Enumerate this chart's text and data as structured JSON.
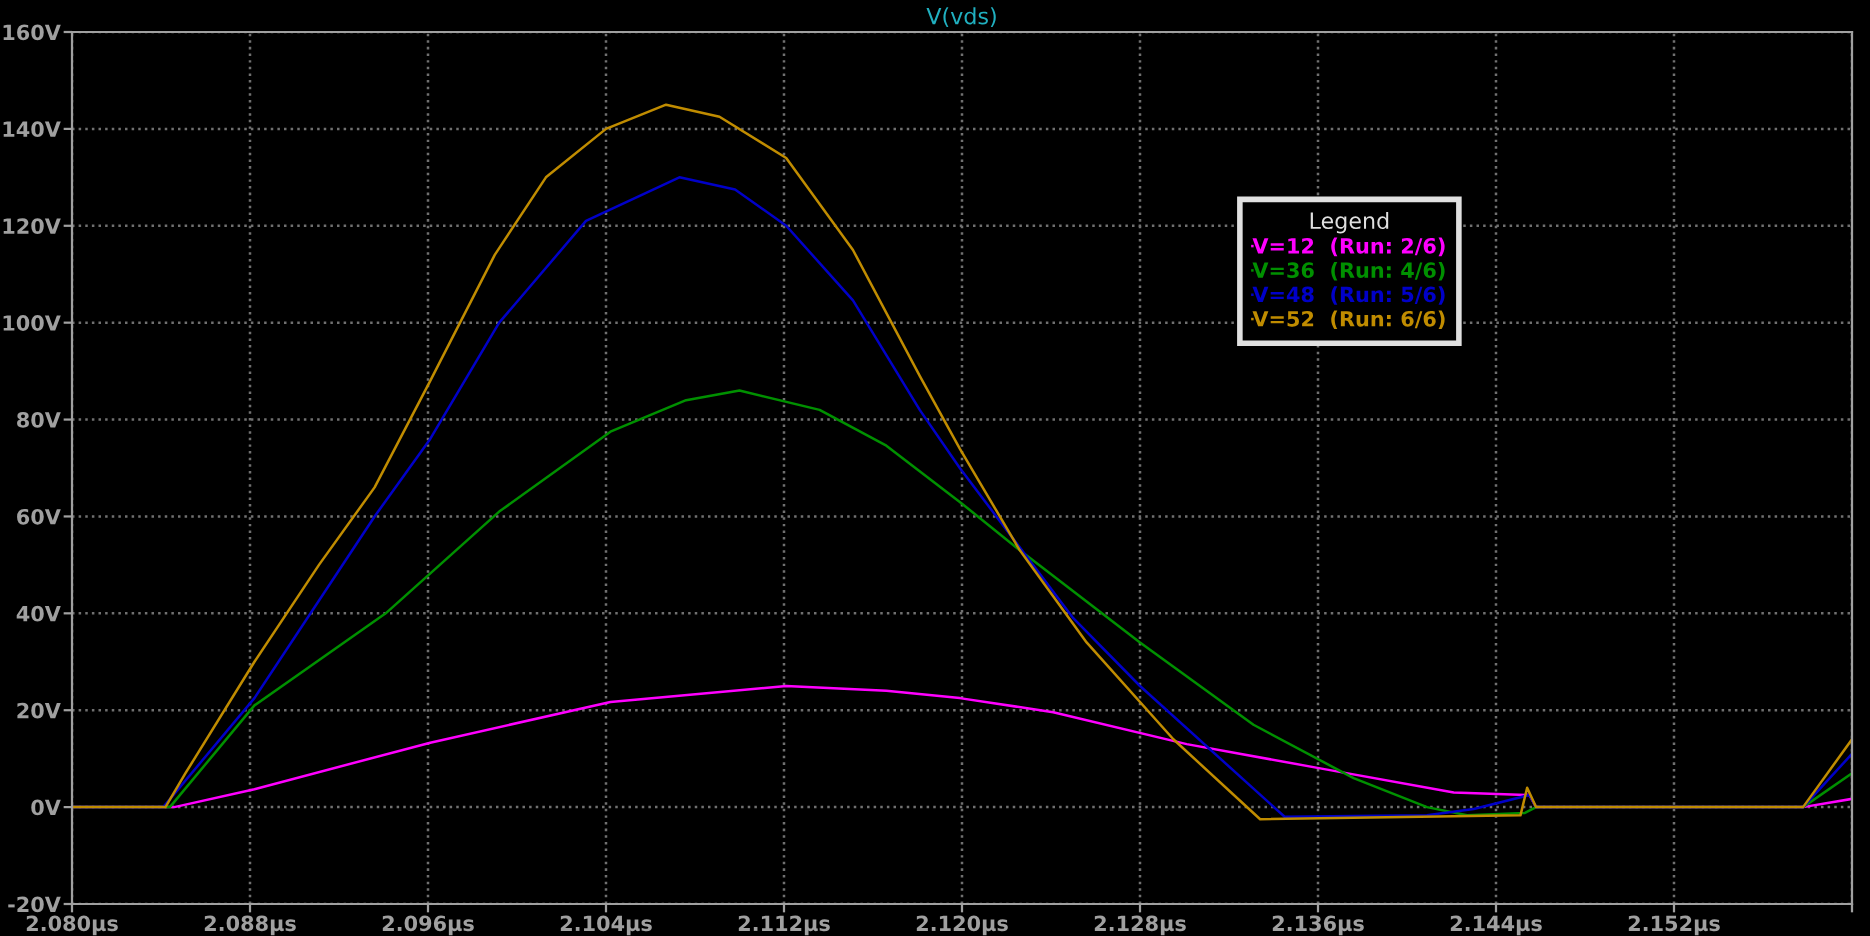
{
  "chart_data": {
    "type": "line",
    "title": "V(vds)",
    "legend_title": "Legend",
    "legend": "top right",
    "grid": true,
    "xlim": [
      2.08,
      2.16
    ],
    "ylim": [
      -20,
      160
    ],
    "xticks": [
      {
        "value": 2.08,
        "label": "2.080µs"
      },
      {
        "value": 2.088,
        "label": "2.088µs"
      },
      {
        "value": 2.096,
        "label": "2.096µs"
      },
      {
        "value": 2.104,
        "label": "2.104µs"
      },
      {
        "value": 2.112,
        "label": "2.112µs"
      },
      {
        "value": 2.12,
        "label": "2.120µs"
      },
      {
        "value": 2.128,
        "label": "2.128µs"
      },
      {
        "value": 2.136,
        "label": "2.136µs"
      },
      {
        "value": 2.144,
        "label": "2.144µs"
      },
      {
        "value": 2.152,
        "label": "2.152µs"
      },
      {
        "value": 2.16,
        "label": null
      }
    ],
    "yticks": [
      {
        "value": -20,
        "label": "-20V"
      },
      {
        "value": 0,
        "label": "0V"
      },
      {
        "value": 20,
        "label": "20V"
      },
      {
        "value": 40,
        "label": "40V"
      },
      {
        "value": 60,
        "label": "60V"
      },
      {
        "value": 80,
        "label": "80V"
      },
      {
        "value": 100,
        "label": "100V"
      },
      {
        "value": 120,
        "label": "120V"
      },
      {
        "value": 140,
        "label": "140V"
      },
      {
        "value": 160,
        "label": "160V"
      }
    ],
    "series": [
      {
        "name": "V=12  (Run: 2/6)",
        "color": "#ff00ff",
        "x": [
          2.08,
          2.0846,
          2.0882,
          2.0961,
          2.1042,
          2.1121,
          2.1166,
          2.1199,
          2.1241,
          2.1301,
          2.1361,
          2.1421,
          2.1455,
          2.1458,
          2.1578,
          2.16
        ],
        "values": [
          0,
          0,
          3.7,
          13.3,
          21.7,
          25,
          24,
          22.5,
          19.6,
          13,
          8,
          3,
          2.5,
          0,
          0,
          1.7
        ]
      },
      {
        "name": "V=36  (Run: 4/6)",
        "color": "#009000",
        "x": [
          2.08,
          2.0844,
          2.0882,
          2.0941,
          2.0992,
          2.1042,
          2.1076,
          2.11,
          2.1136,
          2.1166,
          2.1199,
          2.1226,
          2.128,
          2.1331,
          2.1376,
          2.1409,
          2.1427,
          2.1453,
          2.1458,
          2.1578,
          2.16
        ],
        "values": [
          0,
          0,
          21,
          40,
          61,
          77.5,
          84,
          86,
          82,
          74.6,
          63,
          53,
          34,
          17,
          6,
          0,
          -1.7,
          -1.2,
          0,
          0,
          7
        ]
      },
      {
        "name": "V=48  (Run: 5/6)",
        "color": "#0000c8",
        "x": [
          2.08,
          2.0841,
          2.0882,
          2.0936,
          2.0961,
          2.0992,
          2.1031,
          2.1073,
          2.1098,
          2.1121,
          2.1151,
          2.1181,
          2.1199,
          2.125,
          2.128,
          2.1345,
          2.1409,
          2.143,
          2.1455,
          2.1458,
          2.1578,
          2.16
        ],
        "values": [
          0,
          0,
          22.5,
          60,
          76,
          100,
          121,
          130,
          127.5,
          120,
          104.6,
          82,
          70,
          39,
          25,
          -2,
          -1.7,
          -0.4,
          2.5,
          0,
          0,
          11
        ]
      },
      {
        "name": "V=52  (Run: 6/6)",
        "color": "#c08c00",
        "x": [
          2.08,
          2.0842,
          2.0851,
          2.0882,
          2.0911,
          2.0936,
          2.0961,
          2.099,
          2.1013,
          2.104,
          2.1067,
          2.1091,
          2.1121,
          2.1151,
          2.1181,
          2.1199,
          2.1226,
          2.1256,
          2.1295,
          2.1334,
          2.1451,
          2.1454,
          2.1458,
          2.1578,
          2.16
        ],
        "values": [
          0,
          0,
          7,
          30,
          50,
          66,
          88,
          114,
          130,
          140,
          145,
          142.5,
          134,
          115,
          89,
          74,
          53,
          34,
          14,
          -2.5,
          -1.7,
          4,
          0,
          0,
          14
        ]
      }
    ]
  }
}
